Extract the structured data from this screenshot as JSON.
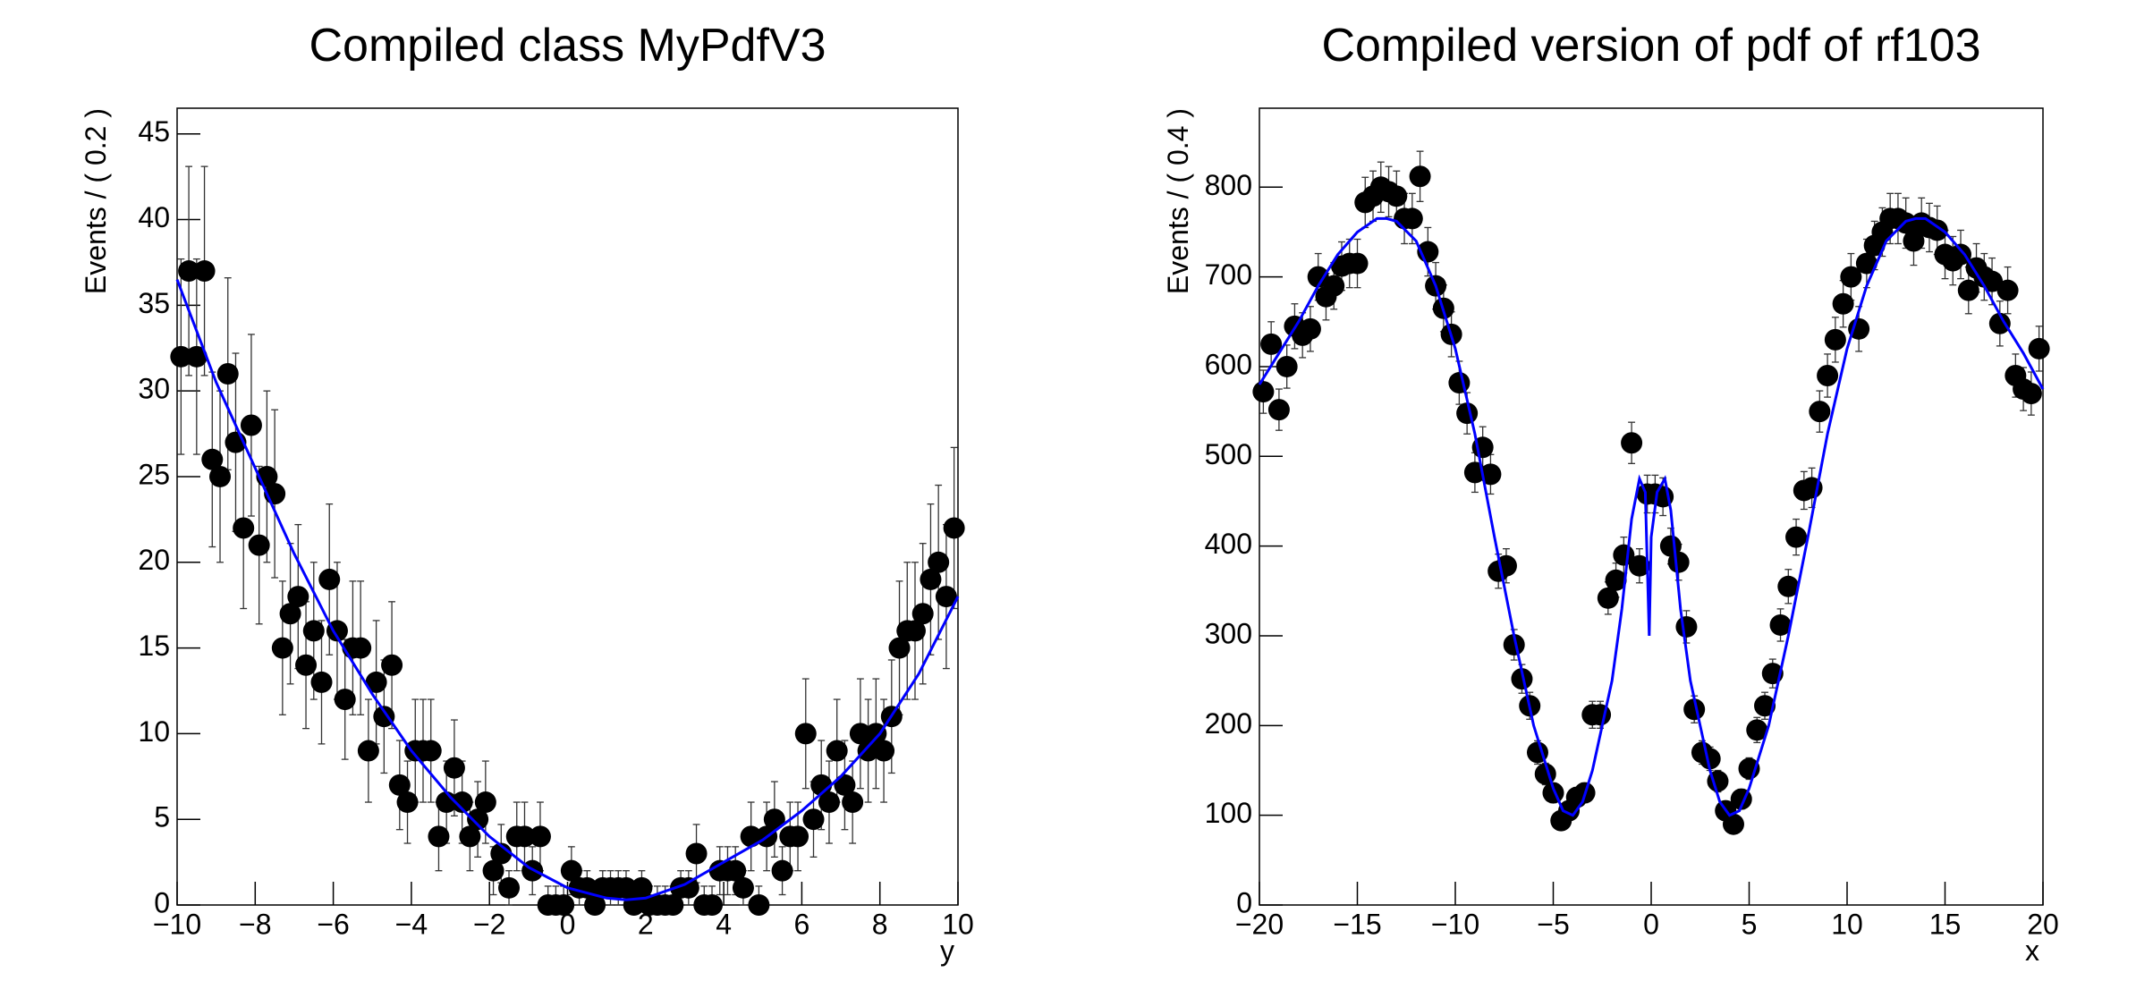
{
  "chart_data": [
    {
      "type": "scatter",
      "title": "Compiled class MyPdfV3",
      "x_label": "y",
      "y_label": "Events / ( 0.2 )",
      "xlim": [
        -10,
        10
      ],
      "ylim": [
        0,
        46.5
      ],
      "xticks": [
        {
          "value": -10,
          "label": "−10"
        },
        {
          "value": -8,
          "label": "−8"
        },
        {
          "value": -6,
          "label": "−6"
        },
        {
          "value": -4,
          "label": "−4"
        },
        {
          "value": -2,
          "label": "−2"
        },
        0,
        2,
        4,
        6,
        8,
        10
      ],
      "yticks": [
        0,
        5,
        10,
        15,
        20,
        25,
        30,
        35,
        40,
        45
      ],
      "color": "#000000",
      "curve_color": "#0000ff",
      "x": [
        -9.9,
        -9.7,
        -9.5,
        -9.3,
        -9.1,
        -8.9,
        -8.7,
        -8.5,
        -8.3,
        -8.1,
        -7.9,
        -7.7,
        -7.5,
        -7.3,
        -7.1,
        -6.9,
        -6.7,
        -6.5,
        -6.3,
        -6.1,
        -5.9,
        -5.7,
        -5.5,
        -5.3,
        -5.1,
        -4.9,
        -4.7,
        -4.5,
        -4.3,
        -4.1,
        -3.9,
        -3.7,
        -3.5,
        -3.3,
        -3.1,
        -2.9,
        -2.7,
        -2.5,
        -2.3,
        -2.1,
        -1.9,
        -1.7,
        -1.5,
        -1.3,
        -1.1,
        -0.9,
        -0.7,
        -0.5,
        -0.3,
        -0.1,
        0.1,
        0.3,
        0.5,
        0.7,
        0.9,
        1.1,
        1.3,
        1.5,
        1.7,
        1.9,
        2.1,
        2.3,
        2.5,
        2.7,
        2.9,
        3.1,
        3.3,
        3.5,
        3.7,
        3.9,
        4.1,
        4.3,
        4.5,
        4.7,
        4.9,
        5.1,
        5.3,
        5.5,
        5.7,
        5.9,
        6.1,
        6.3,
        6.5,
        6.7,
        6.9,
        7.1,
        7.3,
        7.5,
        7.7,
        7.9,
        8.1,
        8.3,
        8.5,
        8.7,
        8.9,
        9.1,
        9.3,
        9.5,
        9.7,
        9.9
      ],
      "values": [
        32,
        37,
        32,
        37,
        26,
        25,
        31,
        27,
        22,
        28,
        21,
        25,
        24,
        15,
        17,
        18,
        14,
        16,
        13,
        19,
        16,
        12,
        15,
        15,
        9,
        13,
        11,
        14,
        7,
        6,
        9,
        9,
        9,
        4,
        6,
        8,
        6,
        4,
        5,
        6,
        2,
        3,
        1,
        4,
        4,
        2,
        4,
        0,
        0,
        0,
        2,
        1,
        1,
        0,
        1,
        1,
        1,
        1,
        0,
        1,
        0,
        0,
        0,
        0,
        1,
        1,
        3,
        0,
        0,
        2,
        2,
        2,
        1,
        4,
        0,
        4,
        5,
        2,
        4,
        4,
        10,
        5,
        7,
        6,
        9,
        7,
        6,
        10,
        9,
        10,
        9,
        11,
        15,
        16,
        16,
        17,
        19,
        20,
        18,
        22
      ],
      "errors": [
        5.7,
        6.1,
        5.7,
        6.1,
        5.1,
        5,
        5.6,
        5.2,
        4.7,
        5.3,
        4.6,
        5,
        4.9,
        3.9,
        4.1,
        4.2,
        3.7,
        4,
        3.6,
        4.4,
        4,
        3.5,
        3.9,
        3.9,
        3,
        3.6,
        3.3,
        3.7,
        2.6,
        2.4,
        3,
        3,
        3,
        2,
        2.4,
        2.8,
        2.4,
        2,
        2.2,
        2.4,
        1.4,
        1.7,
        1,
        2,
        2,
        1.4,
        2,
        1.1,
        1.1,
        1.1,
        1.4,
        1,
        1,
        1.1,
        1,
        1,
        1,
        1,
        1.1,
        1,
        1.1,
        1.1,
        1.1,
        1.1,
        1,
        1,
        1.7,
        1.1,
        1.1,
        1.4,
        1.4,
        1.4,
        1,
        2,
        1.1,
        2,
        2.2,
        1.4,
        2,
        2,
        3.2,
        2.2,
        2.6,
        2.4,
        3,
        2.6,
        2.4,
        3.2,
        3,
        3.2,
        3,
        3.3,
        3.9,
        4,
        4,
        4.1,
        4.4,
        4.5,
        4.2,
        4.7
      ],
      "curve": {
        "x": [
          -10,
          -9,
          -8,
          -7,
          -6,
          -5,
          -4,
          -3,
          -2,
          -1,
          0,
          1,
          1.5,
          2,
          3,
          4,
          5,
          6,
          7,
          8,
          9,
          10
        ],
        "values": [
          36.5,
          30.5,
          25.5,
          20.5,
          16,
          12.3,
          9,
          6.3,
          4,
          2.2,
          1,
          0.4,
          0.3,
          0.4,
          1.2,
          2.5,
          3.8,
          5.5,
          7.5,
          10,
          13.5,
          18
        ]
      }
    },
    {
      "type": "scatter",
      "title": "Compiled version of pdf of rf103",
      "x_label": "x",
      "y_label": "Events / ( 0.4 )",
      "xlim": [
        -20,
        20
      ],
      "ylim": [
        0,
        888
      ],
      "xticks": [
        {
          "value": -20,
          "label": "−20"
        },
        {
          "value": -15,
          "label": "−15"
        },
        {
          "value": -10,
          "label": "−10"
        },
        {
          "value": -5,
          "label": "−5"
        },
        0,
        5,
        10,
        15,
        20
      ],
      "yticks": [
        0,
        100,
        200,
        300,
        400,
        500,
        600,
        700,
        800
      ],
      "color": "#000000",
      "curve_color": "#0000ff",
      "x": [
        -19.8,
        -19.4,
        -19,
        -18.6,
        -18.2,
        -17.8,
        -17.4,
        -17,
        -16.6,
        -16.2,
        -15.8,
        -15.4,
        -15,
        -14.6,
        -14.2,
        -13.8,
        -13.4,
        -13,
        -12.6,
        -12.2,
        -11.8,
        -11.4,
        -11,
        -10.6,
        -10.2,
        -9.8,
        -9.4,
        -9,
        -8.6,
        -8.2,
        -7.8,
        -7.4,
        -7,
        -6.6,
        -6.2,
        -5.8,
        -5.4,
        -5,
        -4.6,
        -4.2,
        -3.8,
        -3.4,
        -3,
        -2.6,
        -2.2,
        -1.8,
        -1.4,
        -1,
        -0.6,
        -0.2,
        0.2,
        0.6,
        1,
        1.4,
        1.8,
        2.2,
        2.6,
        3,
        3.4,
        3.8,
        4.2,
        4.6,
        5,
        5.4,
        5.8,
        6.2,
        6.6,
        7,
        7.4,
        7.8,
        8.2,
        8.6,
        9,
        9.4,
        9.8,
        10.2,
        10.6,
        11,
        11.4,
        11.8,
        12.2,
        12.6,
        13,
        13.4,
        13.8,
        14.2,
        14.6,
        15,
        15.4,
        15.8,
        16.2,
        16.6,
        17,
        17.4,
        17.8,
        18.2,
        18.6,
        19,
        19.4,
        19.8
      ],
      "values": [
        572,
        625,
        552,
        600,
        645,
        635,
        642,
        700,
        678,
        690,
        712,
        715,
        715,
        783,
        790,
        800,
        795,
        790,
        765,
        765,
        812,
        728,
        690,
        665,
        636,
        582,
        548,
        482,
        510,
        480,
        372,
        378,
        290,
        252,
        222,
        170,
        146,
        125,
        94,
        105,
        120,
        125,
        212,
        212,
        342,
        362,
        390,
        515,
        378,
        458,
        458,
        455,
        400,
        382,
        310,
        218,
        170,
        163,
        138,
        105,
        90,
        118,
        152,
        195,
        222,
        258,
        312,
        355,
        410,
        462,
        465,
        550,
        590,
        630,
        670,
        700,
        642,
        715,
        735,
        750,
        765,
        765,
        760,
        740,
        760,
        755,
        752,
        725,
        718,
        725,
        685,
        710,
        700,
        695,
        648,
        685,
        590,
        575,
        570,
        620
      ],
      "errors": [
        24,
        25,
        23,
        24,
        25,
        25,
        25,
        26,
        26,
        26,
        27,
        27,
        27,
        28,
        28,
        28,
        28,
        28,
        28,
        28,
        28,
        27,
        26,
        26,
        25,
        24,
        23,
        22,
        23,
        22,
        19,
        19,
        17,
        16,
        15,
        13,
        12,
        11,
        10,
        10,
        11,
        11,
        15,
        15,
        18,
        19,
        20,
        23,
        19,
        21,
        21,
        21,
        20,
        20,
        18,
        15,
        13,
        13,
        12,
        10,
        9,
        11,
        12,
        14,
        15,
        16,
        18,
        19,
        20,
        21,
        22,
        23,
        24,
        25,
        26,
        26,
        25,
        27,
        27,
        27,
        28,
        28,
        28,
        27,
        28,
        27,
        27,
        27,
        27,
        27,
        26,
        27,
        26,
        26,
        25,
        26,
        24,
        24,
        24,
        25
      ],
      "curve": {
        "x": [
          -20,
          -19,
          -18,
          -17,
          -16,
          -15,
          -14,
          -13.5,
          -13,
          -12,
          -11,
          -10,
          -9,
          -8,
          -7,
          -6,
          -5,
          -4.5,
          -4,
          -3.5,
          -3,
          -2,
          -1.5,
          -1,
          -0.6,
          -0.3,
          -0.1,
          0,
          0.3,
          0.7,
          1,
          1.5,
          2,
          3,
          3.5,
          4,
          4.5,
          5,
          6,
          7,
          8,
          9,
          10,
          11,
          12,
          13,
          13.5,
          14,
          15,
          16,
          17,
          18,
          19,
          20
        ],
        "values": [
          580,
          615,
          650,
          690,
          725,
          750,
          765,
          765,
          762,
          740,
          690,
          620,
          525,
          410,
          300,
          200,
          130,
          105,
          100,
          115,
          150,
          250,
          330,
          430,
          475,
          460,
          300,
          410,
          460,
          475,
          440,
          330,
          250,
          150,
          115,
          100,
          105,
          130,
          200,
          300,
          410,
          525,
          620,
          690,
          740,
          762,
          765,
          765,
          750,
          725,
          690,
          650,
          615,
          575
        ]
      }
    }
  ]
}
